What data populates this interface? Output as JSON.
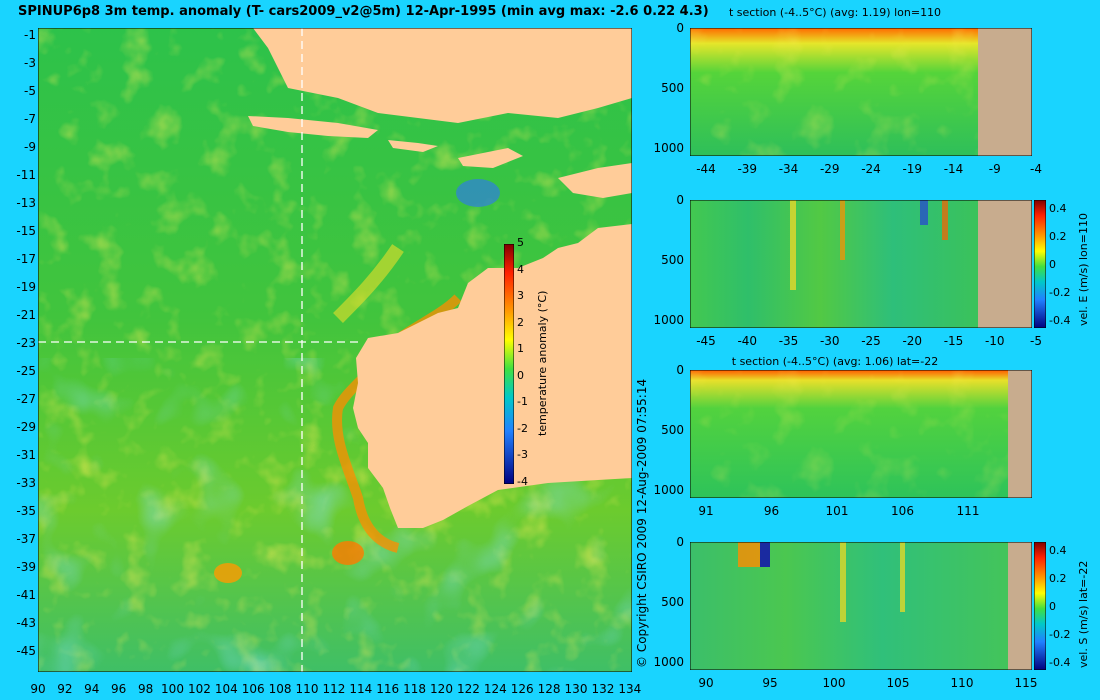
{
  "title": "SPINUP6p8 3m temp. anomaly (T- cars2009_v2@5m) 12-Apr-1995 (min avg max: -2.6 0.22 4.3)",
  "copyright": "© Copyright CSIRO 2009   12-Aug-2009 07:55:14",
  "map": {
    "lat_ticks": [
      "-1",
      "-3",
      "-5",
      "-7",
      "-9",
      "-11",
      "-13",
      "-15",
      "-17",
      "-19",
      "-21",
      "-23",
      "-25",
      "-27",
      "-29",
      "-31",
      "-33",
      "-35",
      "-37",
      "-39",
      "-41",
      "-43",
      "-45"
    ],
    "lon_ticks": [
      "90",
      "92",
      "94",
      "96",
      "98",
      "100",
      "102",
      "104",
      "106",
      "108",
      "110",
      "112",
      "114",
      "116",
      "118",
      "120",
      "122",
      "124",
      "126",
      "128",
      "130",
      "132",
      "134"
    ],
    "section_lon": 110,
    "section_lat": -22,
    "colors": {
      "ocean_base": "#2ec34a",
      "land": "#ffcc99",
      "anomaly_warm": "#ff8800",
      "anomaly_cool": "#3f9bff"
    }
  },
  "colorbar": {
    "label": "temperature anomaly (°C)",
    "ticks": [
      "5",
      "4",
      "3",
      "2",
      "1",
      "0",
      "-1",
      "-2",
      "-3",
      "-4"
    ]
  },
  "panels": [
    {
      "title": "t section (-4..5°C) (avg: 1.19) lon=110",
      "y_ticks": [
        "0",
        "500",
        "1000"
      ],
      "x_ticks": [
        "-44",
        "-39",
        "-34",
        "-29",
        "-24",
        "-19",
        "-14",
        "-9",
        "-4"
      ]
    },
    {
      "title": "",
      "y_ticks": [
        "0",
        "500",
        "1000"
      ],
      "x_ticks": [
        "-45",
        "-40",
        "-35",
        "-30",
        "-25",
        "-20",
        "-15",
        "-10",
        "-5"
      ],
      "colorbar_label": "vel. E (m/s) lon=110",
      "colorbar_ticks": [
        "0.4",
        "0.2",
        "0",
        "-0.2",
        "-0.4"
      ]
    },
    {
      "title": "t section (-4..5°C) (avg: 1.06) lat=-22",
      "y_ticks": [
        "0",
        "500",
        "1000"
      ],
      "x_ticks": [
        "91",
        "96",
        "101",
        "106",
        "111"
      ]
    },
    {
      "title": "",
      "y_ticks": [
        "0",
        "500",
        "1000"
      ],
      "x_ticks": [
        "90",
        "95",
        "100",
        "105",
        "110",
        "115"
      ],
      "colorbar_label": "vel. S (m/s) lat=-22",
      "colorbar_ticks": [
        "0.4",
        "0.2",
        "0",
        "-0.2",
        "-0.4"
      ]
    }
  ]
}
